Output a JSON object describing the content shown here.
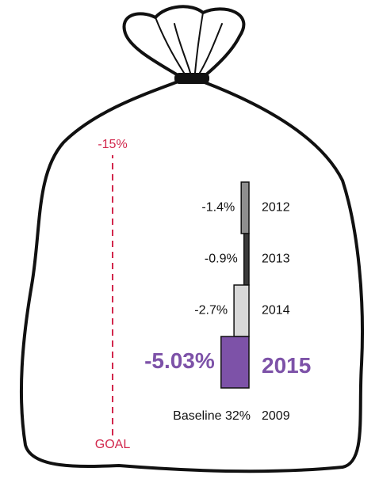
{
  "chart_data": {
    "type": "waterfall",
    "categories": [
      "2012",
      "2013",
      "2014",
      "2015"
    ],
    "values": [
      -1.4,
      -0.9,
      -2.7,
      -5.03
    ],
    "value_labels": [
      "-1.4%",
      "-0.9%",
      "-2.7%",
      "-5.03%"
    ],
    "colors": [
      "#8e8e8e",
      "#3a3a3a",
      "#d8d8d8",
      "#7d52a8"
    ],
    "goal": {
      "value": -15,
      "label": "-15%"
    },
    "goal_name": "GOAL",
    "goal_color": "#d2274c",
    "baseline_label": "Baseline 32%",
    "baseline_year": "2009"
  }
}
